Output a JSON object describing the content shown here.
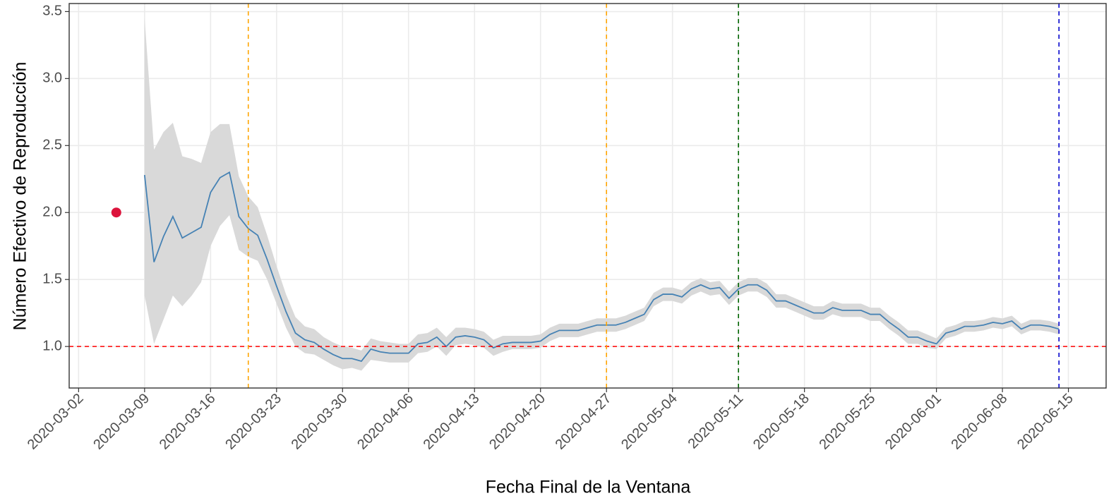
{
  "chart_data": {
    "type": "line",
    "x_label": "Fecha Final de la Ventana",
    "y_label": "Número Efectivo de Reproducción",
    "xlim": [
      "2020-03-01",
      "2020-06-19"
    ],
    "xticks": [
      "2020-03-02",
      "2020-03-09",
      "2020-03-16",
      "2020-03-23",
      "2020-03-30",
      "2020-04-06",
      "2020-04-13",
      "2020-04-20",
      "2020-04-27",
      "2020-05-04",
      "2020-05-11",
      "2020-05-18",
      "2020-05-25",
      "2020-06-01",
      "2020-06-08",
      "2020-06-15"
    ],
    "ylim": [
      0.69,
      3.56
    ],
    "yticks": [
      {
        "value": 1,
        "label": "1.0"
      },
      1.5,
      {
        "value": 2,
        "label": "2.0"
      },
      2.5,
      {
        "value": 3,
        "label": "3.0"
      },
      3.5
    ],
    "grid": true,
    "line_color": "#4682b4",
    "band_color": "#d9d9d9",
    "x": [
      "2020-03-09",
      "2020-03-10",
      "2020-03-11",
      "2020-03-12",
      "2020-03-13",
      "2020-03-14",
      "2020-03-15",
      "2020-03-16",
      "2020-03-17",
      "2020-03-18",
      "2020-03-19",
      "2020-03-20",
      "2020-03-21",
      "2020-03-22",
      "2020-03-23",
      "2020-03-24",
      "2020-03-25",
      "2020-03-26",
      "2020-03-27",
      "2020-03-28",
      "2020-03-29",
      "2020-03-30",
      "2020-03-31",
      "2020-04-01",
      "2020-04-02",
      "2020-04-03",
      "2020-04-04",
      "2020-04-05",
      "2020-04-06",
      "2020-04-07",
      "2020-04-08",
      "2020-04-09",
      "2020-04-10",
      "2020-04-11",
      "2020-04-12",
      "2020-04-13",
      "2020-04-14",
      "2020-04-15",
      "2020-04-16",
      "2020-04-17",
      "2020-04-18",
      "2020-04-19",
      "2020-04-20",
      "2020-04-21",
      "2020-04-22",
      "2020-04-23",
      "2020-04-24",
      "2020-04-25",
      "2020-04-26",
      "2020-04-27",
      "2020-04-28",
      "2020-04-29",
      "2020-04-30",
      "2020-05-01",
      "2020-05-02",
      "2020-05-03",
      "2020-05-04",
      "2020-05-05",
      "2020-05-06",
      "2020-05-07",
      "2020-05-08",
      "2020-05-09",
      "2020-05-10",
      "2020-05-11",
      "2020-05-12",
      "2020-05-13",
      "2020-05-14",
      "2020-05-15",
      "2020-05-16",
      "2020-05-17",
      "2020-05-18",
      "2020-05-19",
      "2020-05-20",
      "2020-05-21",
      "2020-05-22",
      "2020-05-23",
      "2020-05-24",
      "2020-05-25",
      "2020-05-26",
      "2020-05-27",
      "2020-05-28",
      "2020-05-29",
      "2020-05-30",
      "2020-05-31",
      "2020-06-01",
      "2020-06-02",
      "2020-06-03",
      "2020-06-04",
      "2020-06-05",
      "2020-06-06",
      "2020-06-07",
      "2020-06-08",
      "2020-06-09",
      "2020-06-10",
      "2020-06-11",
      "2020-06-12",
      "2020-06-13",
      "2020-06-14"
    ],
    "values": [
      2.28,
      1.63,
      1.82,
      1.97,
      1.81,
      1.85,
      1.89,
      2.15,
      2.26,
      2.3,
      1.97,
      1.88,
      1.83,
      1.65,
      1.45,
      1.26,
      1.1,
      1.05,
      1.03,
      0.98,
      0.94,
      0.91,
      0.91,
      0.89,
      0.98,
      0.96,
      0.95,
      0.95,
      0.95,
      1.02,
      1.03,
      1.07,
      1.0,
      1.07,
      1.08,
      1.07,
      1.05,
      0.99,
      1.02,
      1.03,
      1.03,
      1.03,
      1.04,
      1.09,
      1.12,
      1.12,
      1.12,
      1.14,
      1.16,
      1.16,
      1.16,
      1.18,
      1.21,
      1.24,
      1.35,
      1.39,
      1.39,
      1.37,
      1.43,
      1.46,
      1.43,
      1.44,
      1.36,
      1.43,
      1.46,
      1.46,
      1.42,
      1.34,
      1.34,
      1.31,
      1.28,
      1.25,
      1.25,
      1.29,
      1.27,
      1.27,
      1.27,
      1.24,
      1.24,
      1.18,
      1.13,
      1.07,
      1.07,
      1.04,
      1.02,
      1.1,
      1.12,
      1.15,
      1.15,
      1.16,
      1.18,
      1.17,
      1.19,
      1.13,
      1.16,
      1.16,
      1.15,
      1.13
    ],
    "lower": [
      1.38,
      1.02,
      1.2,
      1.38,
      1.3,
      1.38,
      1.48,
      1.75,
      1.9,
      1.98,
      1.72,
      1.67,
      1.64,
      1.5,
      1.32,
      1.14,
      1.0,
      0.95,
      0.94,
      0.9,
      0.86,
      0.83,
      0.84,
      0.82,
      0.9,
      0.89,
      0.88,
      0.88,
      0.88,
      0.95,
      0.96,
      1.0,
      0.93,
      1.01,
      1.02,
      1.01,
      0.99,
      0.93,
      0.96,
      0.98,
      0.98,
      0.98,
      0.99,
      1.04,
      1.07,
      1.07,
      1.07,
      1.09,
      1.11,
      1.11,
      1.11,
      1.13,
      1.16,
      1.19,
      1.3,
      1.34,
      1.34,
      1.32,
      1.38,
      1.41,
      1.38,
      1.39,
      1.31,
      1.38,
      1.41,
      1.41,
      1.37,
      1.29,
      1.29,
      1.26,
      1.23,
      1.2,
      1.2,
      1.24,
      1.22,
      1.22,
      1.22,
      1.19,
      1.19,
      1.13,
      1.08,
      1.02,
      1.02,
      0.99,
      0.98,
      1.06,
      1.08,
      1.11,
      1.11,
      1.12,
      1.14,
      1.13,
      1.15,
      1.09,
      1.12,
      1.12,
      1.11,
      1.09
    ],
    "upper": [
      3.45,
      2.47,
      2.6,
      2.67,
      2.42,
      2.4,
      2.37,
      2.6,
      2.66,
      2.66,
      2.27,
      2.12,
      2.04,
      1.83,
      1.6,
      1.39,
      1.22,
      1.15,
      1.13,
      1.07,
      1.03,
      1.0,
      0.99,
      0.97,
      1.06,
      1.04,
      1.03,
      1.02,
      1.02,
      1.09,
      1.1,
      1.14,
      1.07,
      1.14,
      1.14,
      1.13,
      1.11,
      1.05,
      1.08,
      1.08,
      1.08,
      1.08,
      1.09,
      1.14,
      1.17,
      1.17,
      1.17,
      1.19,
      1.21,
      1.21,
      1.21,
      1.23,
      1.26,
      1.29,
      1.4,
      1.44,
      1.44,
      1.42,
      1.48,
      1.51,
      1.48,
      1.49,
      1.41,
      1.48,
      1.51,
      1.51,
      1.47,
      1.39,
      1.39,
      1.36,
      1.33,
      1.3,
      1.3,
      1.34,
      1.32,
      1.32,
      1.32,
      1.29,
      1.29,
      1.23,
      1.18,
      1.12,
      1.12,
      1.09,
      1.06,
      1.14,
      1.16,
      1.19,
      1.19,
      1.2,
      1.22,
      1.21,
      1.23,
      1.17,
      1.2,
      1.2,
      1.19,
      1.17
    ],
    "points": [
      {
        "x": "2020-03-06",
        "y": 2,
        "color": "#dc143c"
      }
    ],
    "vlines": [
      {
        "x": "2020-03-20",
        "color": "#ffa500"
      },
      {
        "x": "2020-04-27",
        "color": "#ffa500"
      },
      {
        "x": "2020-05-11",
        "color": "#006400"
      },
      {
        "x": "2020-06-14",
        "color": "#0000cd"
      }
    ],
    "hlines": [
      {
        "y": 1,
        "color": "#ff0000"
      }
    ]
  }
}
